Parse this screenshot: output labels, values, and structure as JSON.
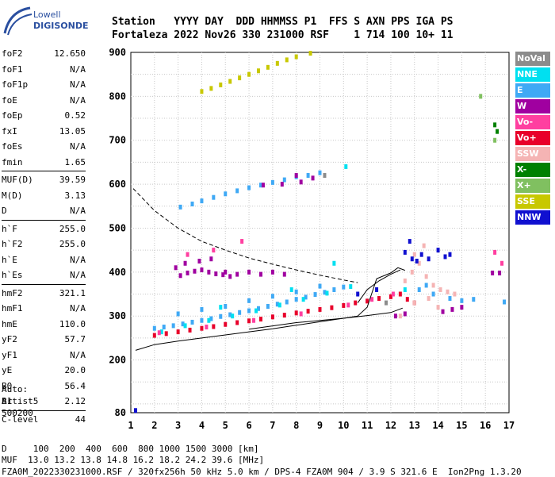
{
  "logo": {
    "line1": "Lowell",
    "line2": "DIGISONDE"
  },
  "header": {
    "row1": "Station   YYYY DAY  DDD HHMMSS P1  FFS S AXN PPS IGA PS",
    "row2": "Fortaleza 2022 Nov26 330 231000 RSF    1 714 100 10+ 11"
  },
  "params": {
    "group1": [
      {
        "k": "foF2",
        "v": "12.650"
      },
      {
        "k": "foF1",
        "v": "N/A"
      },
      {
        "k": "foF1p",
        "v": "N/A"
      },
      {
        "k": "foE",
        "v": "N/A"
      },
      {
        "k": "foEp",
        "v": "0.52"
      },
      {
        "k": "fxI",
        "v": "13.05"
      },
      {
        "k": "foEs",
        "v": "N/A"
      },
      {
        "k": "fmin",
        "v": "1.65"
      }
    ],
    "group2": [
      {
        "k": "MUF(D)",
        "v": "39.59"
      },
      {
        "k": "M(D)",
        "v": "3.13"
      },
      {
        "k": "D",
        "v": "N/A"
      }
    ],
    "group3": [
      {
        "k": "h`F",
        "v": "255.0"
      },
      {
        "k": "h`F2",
        "v": "255.0"
      },
      {
        "k": "h`E",
        "v": "N/A"
      },
      {
        "k": "h`Es",
        "v": "N/A"
      }
    ],
    "group4": [
      {
        "k": "hmF2",
        "v": "321.1"
      },
      {
        "k": "hmF1",
        "v": "N/A"
      },
      {
        "k": "hmE",
        "v": "110.0"
      },
      {
        "k": "yF2",
        "v": "57.7"
      },
      {
        "k": "yF1",
        "v": "N/A"
      },
      {
        "k": "yE",
        "v": "20.0"
      },
      {
        "k": "B0",
        "v": "56.4"
      },
      {
        "k": "B1",
        "v": "2.12"
      }
    ],
    "group5": [
      {
        "k": "C-level",
        "v": "44"
      }
    ]
  },
  "auto": {
    "line1": "Auto:",
    "line2": "Artist5",
    "line3": "500200"
  },
  "footer": {
    "d_row": "D     100  200  400  600  800 1000 1500 3000 [km]",
    "muf_row": "MUF  13.0 13.2 13.8 14.8 16.2 18.2 24.2 39.6 [MHz]",
    "file_row": "FZA0M_2022330231000.RSF / 320fx256h 50 kHz 5.0 km / DPS-4 FZA0M 904 / 3.9 S 321.6 E  Ion2Png 1.3.20"
  },
  "legend": [
    {
      "label": "NoVal",
      "color": "#8c8c8c"
    },
    {
      "label": "NNE",
      "color": "#00e0f0"
    },
    {
      "label": "E",
      "color": "#3fa9f5"
    },
    {
      "label": "W",
      "color": "#a000a0"
    },
    {
      "label": "Vo-",
      "color": "#ff3fa0"
    },
    {
      "label": "Vo+",
      "color": "#e8002a"
    },
    {
      "label": "SSW",
      "color": "#f5b4b4"
    },
    {
      "label": "X-",
      "color": "#008000"
    },
    {
      "label": "X+",
      "color": "#80c060"
    },
    {
      "label": "SSE",
      "color": "#c8c800"
    },
    {
      "label": "NNW",
      "color": "#1010d0"
    }
  ],
  "chart_data": {
    "type": "scatter",
    "xlabel": "",
    "ylabel": "",
    "xlim": [
      1,
      17
    ],
    "ylim": [
      80,
      900
    ],
    "x_ticks": [
      "1",
      "2",
      "3",
      "4",
      "5",
      "6",
      "7",
      "8",
      "9",
      "10",
      "11",
      "12",
      "13",
      "14",
      "15",
      "16",
      "17"
    ],
    "y_ticks": [
      "80",
      "200",
      "300",
      "400",
      "500",
      "600",
      "700",
      "800",
      "900"
    ],
    "grid": true,
    "traces": [
      {
        "style": "dashed",
        "points": [
          [
            1.1,
            590
          ],
          [
            2,
            540
          ],
          [
            3,
            500
          ],
          [
            4,
            470
          ],
          [
            5,
            450
          ],
          [
            6,
            432
          ],
          [
            7,
            418
          ],
          [
            8,
            405
          ],
          [
            9,
            393
          ],
          [
            10,
            382
          ],
          [
            10.6,
            376
          ]
        ]
      },
      {
        "style": "solid",
        "points": [
          [
            1.2,
            222
          ],
          [
            2,
            235
          ],
          [
            3,
            243
          ],
          [
            4,
            250
          ],
          [
            5,
            257
          ],
          [
            6,
            264
          ],
          [
            7,
            271
          ],
          [
            8,
            279
          ],
          [
            9,
            287
          ],
          [
            10,
            295
          ],
          [
            11,
            301
          ],
          [
            12,
            308
          ],
          [
            12.5,
            318
          ]
        ]
      },
      {
        "style": "solid",
        "points": [
          [
            6,
            270
          ],
          [
            8,
            285
          ],
          [
            10,
            295
          ],
          [
            10.6,
            300
          ],
          [
            11,
            320
          ],
          [
            11.4,
            385
          ],
          [
            12,
            398
          ],
          [
            12.3,
            410
          ],
          [
            12.6,
            404
          ]
        ]
      },
      {
        "style": "solid",
        "points": [
          [
            10.6,
            330
          ],
          [
            11,
            360
          ],
          [
            11.5,
            380
          ],
          [
            12,
            395
          ],
          [
            12.4,
            405
          ]
        ]
      }
    ],
    "clusters": [
      {
        "name": "Vo+",
        "points": [
          [
            2.0,
            256
          ],
          [
            2.5,
            260
          ],
          [
            3.0,
            264
          ],
          [
            3.5,
            268
          ],
          [
            4.0,
            272
          ],
          [
            4.5,
            276
          ],
          [
            5.0,
            281
          ],
          [
            5.5,
            285
          ],
          [
            6.0,
            289
          ],
          [
            6.5,
            293
          ],
          [
            7.0,
            298
          ],
          [
            7.5,
            302
          ],
          [
            8.0,
            307
          ],
          [
            8.5,
            311
          ],
          [
            9.0,
            315
          ],
          [
            9.5,
            319
          ],
          [
            10.0,
            324
          ],
          [
            10.5,
            330
          ],
          [
            11.0,
            334
          ],
          [
            11.5,
            340
          ],
          [
            12.0,
            344
          ],
          [
            12.4,
            350
          ],
          [
            12.7,
            338
          ],
          [
            13.0,
            330
          ]
        ]
      },
      {
        "name": "E",
        "points": [
          [
            2.0,
            272
          ],
          [
            2.4,
            275
          ],
          [
            2.8,
            278
          ],
          [
            3.2,
            282
          ],
          [
            3.6,
            286
          ],
          [
            4.0,
            290
          ],
          [
            4.4,
            294
          ],
          [
            4.8,
            299
          ],
          [
            5.2,
            303
          ],
          [
            5.6,
            308
          ],
          [
            6.0,
            312
          ],
          [
            6.4,
            317
          ],
          [
            6.8,
            322
          ],
          [
            7.2,
            327
          ],
          [
            7.6,
            332
          ],
          [
            8.0,
            338
          ],
          [
            8.4,
            343
          ],
          [
            8.8,
            349
          ],
          [
            9.2,
            354
          ],
          [
            9.6,
            360
          ],
          [
            10.0,
            366
          ],
          [
            3.0,
            305
          ],
          [
            4.0,
            315
          ],
          [
            5.0,
            322
          ],
          [
            6.0,
            335
          ],
          [
            7.0,
            345
          ],
          [
            8.0,
            355
          ],
          [
            9.0,
            368
          ],
          [
            3.1,
            548
          ],
          [
            3.6,
            555
          ],
          [
            4.0,
            562
          ],
          [
            4.5,
            570
          ],
          [
            5.0,
            578
          ],
          [
            5.5,
            585
          ],
          [
            6.0,
            592
          ],
          [
            6.5,
            598
          ],
          [
            7.0,
            604
          ],
          [
            7.5,
            610
          ],
          [
            8.0,
            617
          ],
          [
            8.5,
            620
          ],
          [
            9.0,
            626
          ],
          [
            14.5,
            340
          ],
          [
            15.0,
            335
          ],
          [
            15.5,
            338
          ],
          [
            16.8,
            332
          ],
          [
            13.2,
            360
          ],
          [
            13.5,
            370
          ],
          [
            13.8,
            350
          ]
        ]
      },
      {
        "name": "NNE",
        "points": [
          [
            2.3,
            264
          ],
          [
            3.3,
            278
          ],
          [
            4.3,
            290
          ],
          [
            5.3,
            300
          ],
          [
            6.3,
            312
          ],
          [
            7.3,
            325
          ],
          [
            8.3,
            338
          ],
          [
            9.3,
            352
          ],
          [
            10.3,
            367
          ],
          [
            4.8,
            320
          ],
          [
            7.8,
            360
          ],
          [
            9.6,
            420
          ],
          [
            10.1,
            640
          ],
          [
            12.6,
            360
          ]
        ]
      },
      {
        "name": "W",
        "points": [
          [
            3.1,
            392
          ],
          [
            3.4,
            398
          ],
          [
            3.7,
            402
          ],
          [
            4.0,
            405
          ],
          [
            4.3,
            400
          ],
          [
            4.6,
            396
          ],
          [
            4.9,
            394
          ],
          [
            5.2,
            390
          ],
          [
            2.9,
            410
          ],
          [
            3.3,
            420
          ],
          [
            3.9,
            425
          ],
          [
            4.4,
            430
          ],
          [
            5.0,
            400
          ],
          [
            5.5,
            395
          ],
          [
            6.0,
            400
          ],
          [
            6.5,
            395
          ],
          [
            7.0,
            400
          ],
          [
            7.5,
            395
          ],
          [
            8.0,
            620
          ],
          [
            8.7,
            614
          ],
          [
            8.2,
            605
          ],
          [
            7.4,
            600
          ],
          [
            6.6,
            598
          ],
          [
            14.2,
            310
          ],
          [
            14.6,
            315
          ],
          [
            15.0,
            320
          ],
          [
            16.3,
            398
          ],
          [
            16.6,
            398
          ],
          [
            12.2,
            300
          ],
          [
            12.6,
            305
          ]
        ]
      },
      {
        "name": "Vo-",
        "points": [
          [
            2.2,
            262
          ],
          [
            4.2,
            275
          ],
          [
            6.2,
            290
          ],
          [
            8.2,
            305
          ],
          [
            10.2,
            325
          ],
          [
            11.2,
            338
          ],
          [
            12.1,
            350
          ],
          [
            3.4,
            440
          ],
          [
            4.5,
            450
          ],
          [
            5.7,
            470
          ],
          [
            16.4,
            445
          ],
          [
            16.7,
            420
          ]
        ]
      },
      {
        "name": "SSW",
        "points": [
          [
            12.6,
            380
          ],
          [
            12.9,
            400
          ],
          [
            13.2,
            420
          ],
          [
            13.5,
            390
          ],
          [
            13.8,
            370
          ],
          [
            14.1,
            360
          ],
          [
            14.4,
            355
          ],
          [
            14.7,
            350
          ],
          [
            13.0,
            440
          ],
          [
            13.4,
            460
          ],
          [
            13.0,
            330
          ],
          [
            13.6,
            340
          ],
          [
            14.0,
            320
          ],
          [
            12.4,
            300
          ]
        ]
      },
      {
        "name": "NNW",
        "points": [
          [
            10.6,
            350
          ],
          [
            12.6,
            445
          ],
          [
            12.9,
            430
          ],
          [
            13.3,
            440
          ],
          [
            13.6,
            430
          ],
          [
            14.0,
            450
          ],
          [
            14.3,
            435
          ],
          [
            11.4,
            360
          ],
          [
            12.8,
            470
          ],
          [
            14.5,
            440
          ],
          [
            13.1,
            425
          ],
          [
            1.2,
            85
          ]
        ]
      },
      {
        "name": "SSE",
        "points": [
          [
            4.0,
            811
          ],
          [
            4.4,
            818
          ],
          [
            4.8,
            826
          ],
          [
            5.2,
            834
          ],
          [
            5.6,
            842
          ],
          [
            6.0,
            850
          ],
          [
            6.4,
            858
          ],
          [
            6.8,
            866
          ],
          [
            7.2,
            875
          ],
          [
            7.6,
            883
          ],
          [
            8.0,
            890
          ],
          [
            8.6,
            898
          ]
        ]
      },
      {
        "name": "X+",
        "points": [
          [
            15.8,
            800
          ],
          [
            16.4,
            700
          ]
        ]
      },
      {
        "name": "X-",
        "points": [
          [
            16.4,
            735
          ],
          [
            16.5,
            720
          ]
        ]
      },
      {
        "name": "NoVal",
        "points": [
          [
            9.2,
            620
          ],
          [
            11.8,
            330
          ]
        ]
      }
    ]
  }
}
